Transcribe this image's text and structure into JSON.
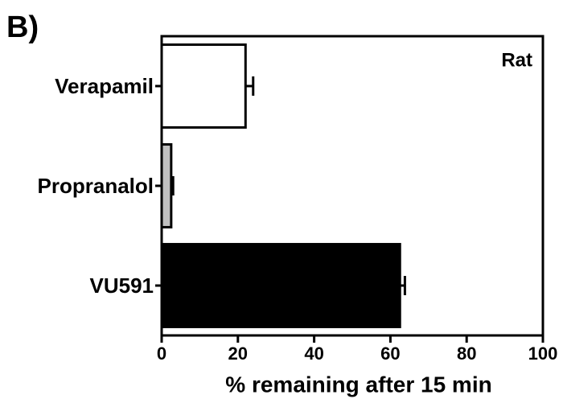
{
  "chart_data": {
    "type": "hbar",
    "panel_label": "B)",
    "annotation": "Rat",
    "xlabel": "% remaining after 15 min",
    "categories": [
      "Verapamil",
      "Propranalol",
      "VU591"
    ],
    "values": [
      22,
      2.5,
      62.5
    ],
    "errors": [
      2,
      0.5,
      1.3
    ],
    "colors": [
      "#ffffff",
      "#c0c0c0",
      "#000000"
    ],
    "xlim": [
      0,
      100
    ],
    "xticks": [
      0,
      20,
      40,
      60,
      80,
      100
    ]
  }
}
